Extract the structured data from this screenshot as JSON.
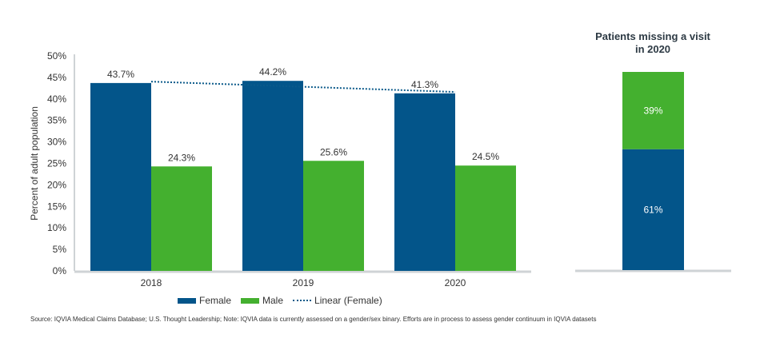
{
  "chart_data": [
    {
      "type": "bar",
      "title": "",
      "xlabel": "",
      "ylabel": "Percent of adult population",
      "ylim": [
        0,
        50
      ],
      "yticks": [
        "0%",
        "5%",
        "10%",
        "15%",
        "20%",
        "25%",
        "30%",
        "35%",
        "40%",
        "45%",
        "50%"
      ],
      "ytick_values": [
        0,
        5,
        10,
        15,
        20,
        25,
        30,
        35,
        40,
        45,
        50
      ],
      "categories": [
        "2018",
        "2019",
        "2020"
      ],
      "series": [
        {
          "name": "Female",
          "color": "#03558a",
          "values": [
            43.7,
            44.2,
            41.3
          ],
          "labels": [
            "43.7%",
            "44.2%",
            "41.3%"
          ]
        },
        {
          "name": "Male",
          "color": "#44b02f",
          "values": [
            24.3,
            25.6,
            24.5
          ],
          "labels": [
            "24.3%",
            "25.6%",
            "24.5%"
          ]
        }
      ],
      "trendline": {
        "name": "Linear (Female)",
        "of_series": "Female",
        "style": "dotted",
        "color": "#0b5a8a"
      },
      "grid": false,
      "legend": "bottom-center"
    },
    {
      "type": "bar",
      "stacked": true,
      "title": "Patients missing a visit in 2020",
      "title_lines": [
        "Patients missing a visit",
        "in 2020"
      ],
      "categories": [
        "2020"
      ],
      "series": [
        {
          "name": "Female",
          "color": "#03558a",
          "values": [
            61
          ],
          "labels": [
            "61%"
          ]
        },
        {
          "name": "Male",
          "color": "#44b02f",
          "values": [
            39
          ],
          "labels": [
            "39%"
          ]
        }
      ]
    }
  ],
  "legend": {
    "items": [
      {
        "label": "Female",
        "type": "swatch",
        "color": "#03558a"
      },
      {
        "label": "Male",
        "type": "swatch",
        "color": "#44b02f"
      },
      {
        "label": "Linear (Female)",
        "type": "dotted",
        "color": "#0b5a8a"
      }
    ]
  },
  "footer": {
    "source": "Source: IQVIA Medical Claims Database; U.S. Thought Leadership; Note: IQVIA data is currently assessed on a gender/sex binary. Efforts are in process to assess gender continuum in IQVIA datasets"
  },
  "colors": {
    "axis": "#cfd3d6",
    "female": "#03558a",
    "male": "#44b02f"
  }
}
